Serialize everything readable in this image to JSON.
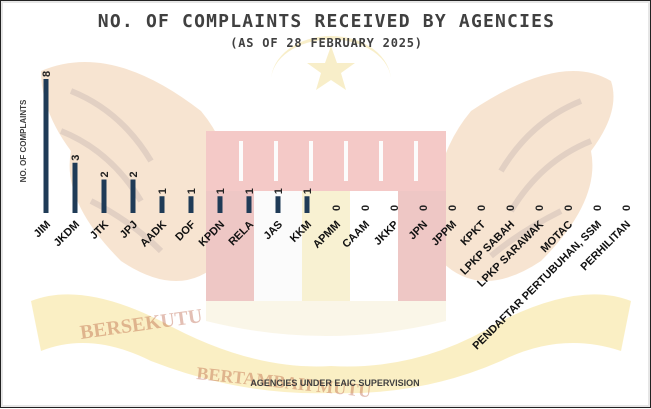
{
  "chart_data": {
    "type": "bar",
    "title": "NO. OF COMPLAINTS RECEIVED BY AGENCIES",
    "subtitle": "(AS OF 28 FEBRUARY 2025)",
    "xlabel": "AGENCIES UNDER EAIC SUPERVISION",
    "ylabel": "NO. OF COMPLAINTS",
    "categories": [
      "JIM",
      "JKDM",
      "JTK",
      "JPJ",
      "AADK",
      "DOF",
      "KPDN",
      "RELA",
      "JAS",
      "KKM",
      "APMM",
      "CAAM",
      "JKKP",
      "JPN",
      "JPPM",
      "KPKT",
      "LPKP SABAH",
      "LPKP SARAWAK",
      "MOTAC",
      "PENDAFTAR PERTUBUHAN, SSM",
      "PERHILITAN"
    ],
    "values": [
      8,
      3,
      2,
      2,
      1,
      1,
      1,
      1,
      1,
      1,
      0,
      0,
      0,
      0,
      0,
      0,
      0,
      0,
      0,
      0,
      0
    ],
    "ylim": [
      0,
      8
    ],
    "grid": false,
    "legend": "none",
    "bar_color": "#1f3b57",
    "watermark_text": [
      "BERSEKUTU",
      "BERTAMBAH MUTU"
    ]
  }
}
